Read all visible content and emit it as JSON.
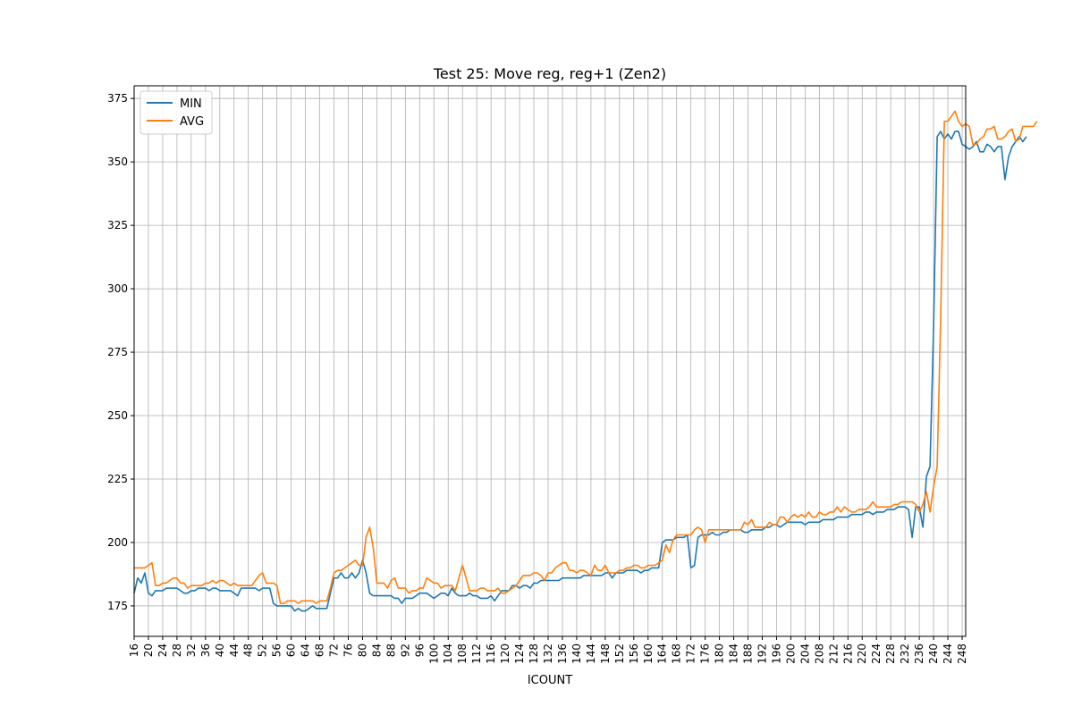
{
  "chart_data": {
    "type": "line",
    "title": "Test 25: Move reg, reg+1 (Zen2)",
    "xlabel": "ICOUNT",
    "ylabel": "",
    "xlim": [
      16,
      249
    ],
    "ylim": [
      163,
      380
    ],
    "grid": true,
    "legend_position": "top-left",
    "x_ticks": [
      16,
      20,
      24,
      28,
      32,
      36,
      40,
      44,
      48,
      52,
      56,
      60,
      64,
      68,
      72,
      76,
      80,
      84,
      88,
      92,
      96,
      100,
      104,
      108,
      112,
      116,
      120,
      124,
      128,
      132,
      136,
      140,
      144,
      148,
      152,
      156,
      160,
      164,
      168,
      172,
      176,
      180,
      184,
      188,
      192,
      196,
      200,
      204,
      208,
      212,
      216,
      220,
      224,
      228,
      232,
      236,
      240,
      244,
      248
    ],
    "y_ticks": [
      175,
      200,
      225,
      250,
      275,
      300,
      325,
      350,
      375
    ],
    "x_start": 16,
    "series": [
      {
        "name": "MIN",
        "color": "#1f77b4",
        "values": [
          180,
          186,
          184,
          188,
          180,
          179,
          181,
          181,
          181,
          182,
          182,
          182,
          182,
          181,
          180,
          180,
          181,
          181,
          182,
          182,
          182,
          181,
          182,
          182,
          181,
          181,
          181,
          181,
          180,
          179,
          182,
          182,
          182,
          182,
          182,
          181,
          182,
          182,
          182,
          176,
          175,
          175,
          175,
          175,
          175,
          173,
          174,
          173,
          173,
          174,
          175,
          174,
          174,
          174,
          174,
          180,
          186,
          186,
          188,
          186,
          186,
          188,
          186,
          188,
          193,
          188,
          180,
          179,
          179,
          179,
          179,
          179,
          179,
          178,
          178,
          176,
          178,
          178,
          178,
          179,
          180,
          180,
          180,
          179,
          178,
          179,
          180,
          180,
          179,
          182,
          180,
          179,
          179,
          179,
          180,
          179,
          179,
          178,
          178,
          178,
          179,
          177,
          179,
          181,
          181,
          181,
          183,
          183,
          182,
          183,
          183,
          182,
          184,
          184,
          185,
          185,
          185,
          185,
          185,
          185,
          186,
          186,
          186,
          186,
          186,
          186,
          187,
          187,
          187,
          187,
          187,
          187,
          188,
          188,
          186,
          188,
          188,
          188,
          189,
          189,
          189,
          189,
          188,
          189,
          189,
          190,
          190,
          190,
          200,
          201,
          201,
          201,
          202,
          202,
          202,
          203,
          190,
          191,
          202,
          203,
          203,
          203,
          204,
          203,
          203,
          204,
          204,
          205,
          205,
          205,
          205,
          204,
          204,
          205,
          205,
          205,
          205,
          206,
          206,
          207,
          207,
          206,
          207,
          208,
          208,
          208,
          208,
          208,
          207,
          208,
          208,
          208,
          208,
          209,
          209,
          209,
          209,
          210,
          210,
          210,
          210,
          211,
          211,
          211,
          211,
          212,
          212,
          211,
          212,
          212,
          212,
          213,
          213,
          213,
          214,
          214,
          214,
          213,
          202,
          214,
          214,
          206,
          226,
          230,
          285,
          360,
          362,
          359,
          361,
          359,
          362,
          362,
          357,
          356,
          355,
          356,
          358,
          354,
          354,
          357,
          356,
          354,
          356,
          356,
          343,
          352,
          356,
          358,
          360,
          358,
          360
        ]
      },
      {
        "name": "AVG",
        "color": "#ff7f0e",
        "values": [
          190,
          190,
          190,
          190,
          191,
          192,
          183,
          183,
          184,
          184,
          185,
          186,
          186,
          184,
          184,
          182,
          183,
          183,
          183,
          183,
          184,
          184,
          185,
          184,
          185,
          185,
          184,
          183,
          184,
          183,
          183,
          183,
          183,
          183,
          185,
          187,
          188,
          184,
          184,
          184,
          183,
          176,
          176,
          177,
          177,
          177,
          176,
          177,
          177,
          177,
          177,
          176,
          177,
          177,
          177,
          182,
          188,
          189,
          189,
          190,
          191,
          192,
          193,
          191,
          191,
          202,
          206,
          198,
          184,
          184,
          184,
          182,
          185,
          186,
          182,
          182,
          182,
          180,
          181,
          181,
          182,
          182,
          186,
          185,
          184,
          184,
          182,
          183,
          183,
          183,
          181,
          186,
          191,
          186,
          181,
          181,
          181,
          182,
          182,
          181,
          181,
          181,
          182,
          180,
          180,
          181,
          182,
          183,
          185,
          187,
          187,
          187,
          188,
          188,
          187,
          185,
          188,
          188,
          190,
          191,
          192,
          192,
          189,
          189,
          188,
          189,
          189,
          188,
          187,
          191,
          189,
          189,
          191,
          188,
          188,
          188,
          189,
          189,
          190,
          190,
          191,
          191,
          190,
          190,
          191,
          191,
          191,
          192,
          193,
          199,
          196,
          201,
          203,
          203,
          203,
          203,
          203,
          205,
          206,
          205,
          200,
          205,
          205,
          205,
          205,
          205,
          205,
          205,
          205,
          205,
          205,
          208,
          207,
          209,
          206,
          206,
          206,
          206,
          208,
          207,
          207,
          210,
          210,
          208,
          210,
          211,
          210,
          211,
          210,
          212,
          210,
          210,
          212,
          211,
          211,
          212,
          212,
          214,
          212,
          214,
          213,
          212,
          212,
          213,
          213,
          213,
          214,
          216,
          214,
          214,
          214,
          214,
          214,
          215,
          215,
          216,
          216,
          216,
          216,
          215,
          212,
          215,
          220,
          212,
          222,
          230,
          290,
          366,
          366,
          368,
          370,
          366,
          364,
          365,
          364,
          357,
          357,
          359,
          360,
          363,
          363,
          364,
          359,
          359,
          360,
          362,
          363,
          358,
          359,
          364,
          364,
          364,
          364,
          366
        ]
      }
    ]
  }
}
